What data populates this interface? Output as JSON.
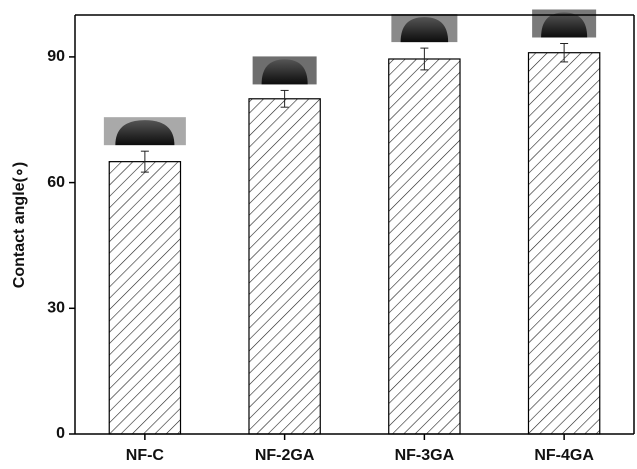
{
  "chart_data": {
    "type": "bar",
    "y_label": "Contact angle(∘)",
    "categories": [
      "NF-C",
      "NF-2GA",
      "NF-3GA",
      "NF-4GA"
    ],
    "values": [
      65,
      80,
      89.5,
      91
    ],
    "errors": [
      2.5,
      2,
      2.6,
      2.2
    ],
    "color": "#000000",
    "ylim": [
      0,
      100
    ],
    "yticks": [
      0,
      30,
      60,
      90
    ]
  }
}
